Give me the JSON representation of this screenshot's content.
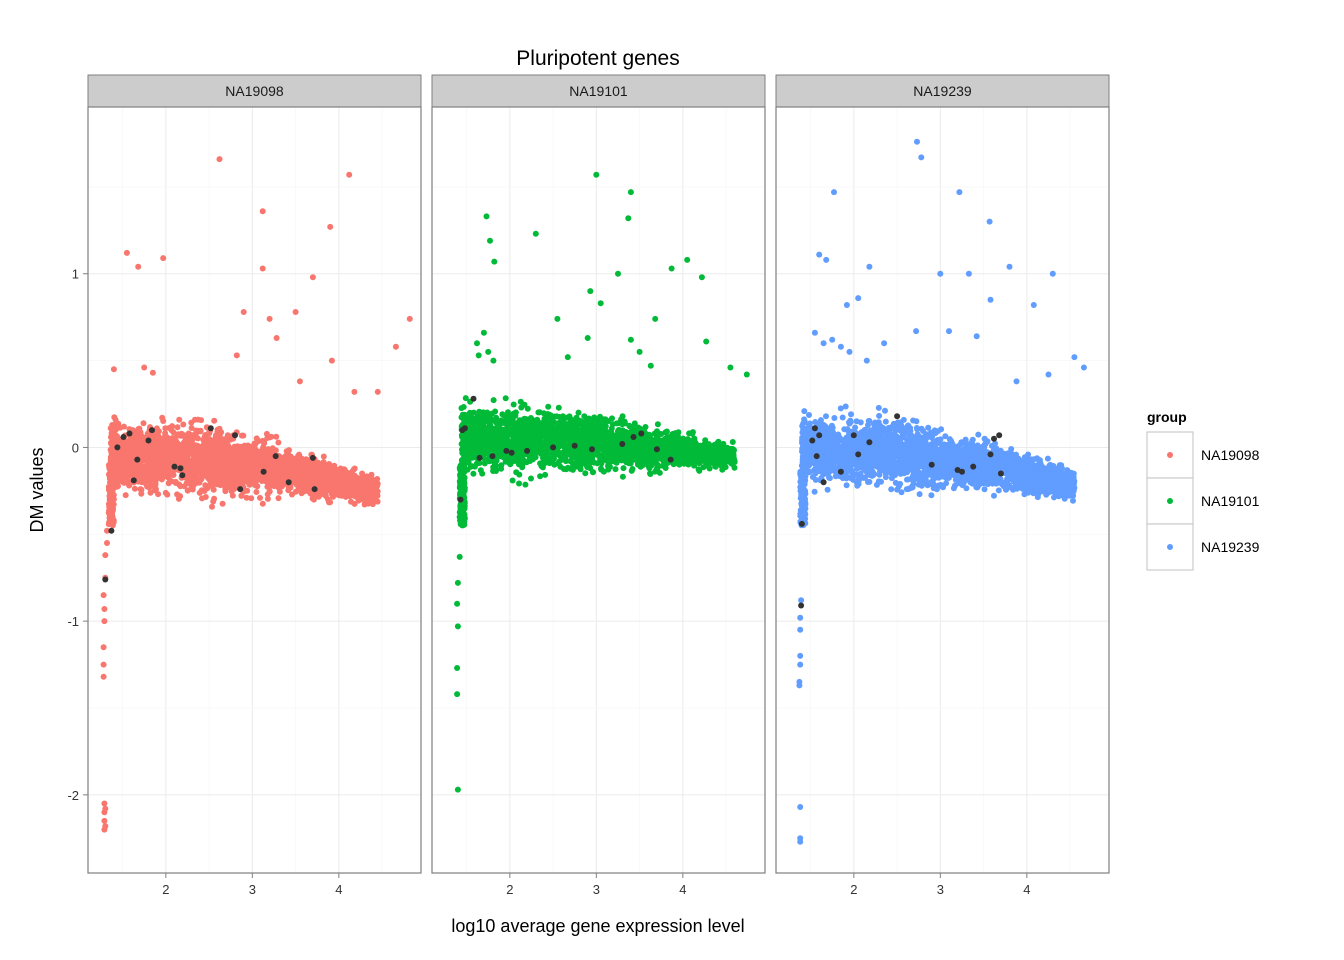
{
  "chart_data": {
    "type": "scatter",
    "title": "Pluripotent genes",
    "xlabel": "log10 average gene expression level",
    "ylabel": "DM values",
    "xlim": [
      1.1,
      4.95
    ],
    "ylim": [
      -2.45,
      1.96
    ],
    "x_ticks": [
      2,
      3,
      4
    ],
    "y_ticks": [
      1,
      0,
      -1,
      -2
    ],
    "y_tick_labels": [
      "1",
      "0",
      "-1",
      "-2"
    ],
    "grid": true,
    "legend": {
      "title": "group",
      "placement": "right",
      "entries": [
        "NA19098",
        "NA19101",
        "NA19239"
      ]
    },
    "highlight_color": "#333333",
    "panels": [
      {
        "name": "NA19098",
        "color": "#F8766D",
        "outliers": [
          [
            1.29,
            -2.05
          ],
          [
            1.29,
            -2.1
          ],
          [
            1.29,
            -2.15
          ],
          [
            1.29,
            -2.2
          ],
          [
            1.3,
            -2.18
          ],
          [
            1.3,
            -2.08
          ],
          [
            1.28,
            -1.32
          ],
          [
            1.28,
            -1.25
          ],
          [
            1.28,
            -1.15
          ],
          [
            1.29,
            -1.0
          ],
          [
            1.29,
            -0.93
          ],
          [
            1.28,
            -0.85
          ],
          [
            1.3,
            -0.75
          ],
          [
            1.3,
            -0.62
          ],
          [
            1.32,
            -0.55
          ],
          [
            1.32,
            -0.48
          ],
          [
            1.55,
            1.12
          ],
          [
            1.68,
            1.04
          ],
          [
            1.97,
            1.09
          ],
          [
            2.62,
            1.66
          ],
          [
            3.12,
            1.36
          ],
          [
            3.12,
            1.03
          ],
          [
            3.9,
            1.27
          ],
          [
            4.12,
            1.57
          ],
          [
            3.7,
            0.98
          ],
          [
            2.9,
            0.78
          ],
          [
            3.5,
            0.78
          ],
          [
            3.2,
            0.74
          ],
          [
            3.28,
            0.63
          ],
          [
            4.82,
            0.74
          ],
          [
            4.66,
            0.58
          ],
          [
            2.82,
            0.53
          ],
          [
            3.92,
            0.5
          ],
          [
            3.55,
            0.38
          ],
          [
            4.18,
            0.32
          ],
          [
            4.45,
            0.32
          ],
          [
            1.4,
            0.45
          ],
          [
            1.75,
            0.46
          ],
          [
            1.85,
            0.43
          ]
        ],
        "band": {
          "xmin": 1.36,
          "xmax": 4.45,
          "center": [
            [
              1.36,
              -0.05
            ],
            [
              2.4,
              -0.07
            ],
            [
              3.2,
              -0.12
            ],
            [
              4.45,
              -0.25
            ]
          ],
          "spread": [
            [
              1.36,
              0.2
            ],
            [
              2.5,
              0.22
            ],
            [
              3.5,
              0.13
            ],
            [
              4.45,
              0.09
            ]
          ]
        },
        "highlights": [
          [
            1.3,
            -0.76
          ],
          [
            1.37,
            -0.48
          ],
          [
            1.44,
            0.0
          ],
          [
            1.51,
            0.06
          ],
          [
            1.58,
            0.08
          ],
          [
            1.63,
            -0.19
          ],
          [
            1.67,
            -0.07
          ],
          [
            1.8,
            0.04
          ],
          [
            1.84,
            0.1
          ],
          [
            2.1,
            -0.11
          ],
          [
            2.17,
            -0.12
          ],
          [
            2.19,
            -0.16
          ],
          [
            2.52,
            0.11
          ],
          [
            2.8,
            0.07
          ],
          [
            2.86,
            -0.24
          ],
          [
            3.13,
            -0.14
          ],
          [
            3.27,
            -0.05
          ],
          [
            3.42,
            -0.2
          ],
          [
            3.7,
            -0.06
          ],
          [
            3.72,
            -0.24
          ]
        ]
      },
      {
        "name": "NA19101",
        "color": "#00BA38",
        "outliers": [
          [
            1.4,
            -1.97
          ],
          [
            1.39,
            -1.42
          ],
          [
            1.39,
            -1.27
          ],
          [
            1.4,
            -1.03
          ],
          [
            1.39,
            -0.9
          ],
          [
            1.4,
            -0.78
          ],
          [
            1.42,
            -0.63
          ],
          [
            1.42,
            -0.4
          ],
          [
            1.43,
            -0.35
          ],
          [
            1.73,
            1.33
          ],
          [
            1.77,
            1.19
          ],
          [
            1.82,
            1.07
          ],
          [
            2.3,
            1.23
          ],
          [
            3.0,
            1.57
          ],
          [
            3.4,
            1.47
          ],
          [
            3.37,
            1.32
          ],
          [
            3.25,
            1.0
          ],
          [
            2.93,
            0.9
          ],
          [
            3.05,
            0.83
          ],
          [
            2.55,
            0.74
          ],
          [
            3.87,
            1.03
          ],
          [
            4.05,
            1.08
          ],
          [
            4.22,
            0.98
          ],
          [
            3.68,
            0.74
          ],
          [
            4.27,
            0.61
          ],
          [
            2.67,
            0.52
          ],
          [
            2.9,
            0.63
          ],
          [
            3.4,
            0.62
          ],
          [
            3.5,
            0.55
          ],
          [
            3.63,
            0.47
          ],
          [
            4.55,
            0.46
          ],
          [
            4.74,
            0.42
          ],
          [
            1.62,
            0.6
          ],
          [
            1.64,
            0.53
          ],
          [
            1.75,
            0.55
          ],
          [
            1.81,
            0.5
          ],
          [
            1.7,
            0.66
          ]
        ],
        "band": {
          "xmin": 1.44,
          "xmax": 4.6,
          "center": [
            [
              1.44,
              0.05
            ],
            [
              2.5,
              0.04
            ],
            [
              3.5,
              0.0
            ],
            [
              4.6,
              -0.05
            ]
          ],
          "spread": [
            [
              1.44,
              0.2
            ],
            [
              2.5,
              0.2
            ],
            [
              3.7,
              0.13
            ],
            [
              4.6,
              0.06
            ]
          ]
        },
        "highlights": [
          [
            1.43,
            -0.3
          ],
          [
            1.45,
            0.1
          ],
          [
            1.48,
            0.11
          ],
          [
            1.58,
            0.28
          ],
          [
            1.65,
            -0.06
          ],
          [
            1.8,
            -0.05
          ],
          [
            1.96,
            -0.02
          ],
          [
            2.02,
            -0.03
          ],
          [
            2.2,
            -0.02
          ],
          [
            2.5,
            0.0
          ],
          [
            2.75,
            0.01
          ],
          [
            2.95,
            -0.01
          ],
          [
            3.3,
            0.02
          ],
          [
            3.43,
            0.06
          ],
          [
            3.52,
            0.08
          ],
          [
            3.7,
            -0.01
          ],
          [
            3.86,
            -0.07
          ]
        ]
      },
      {
        "name": "NA19239",
        "color": "#619CFF",
        "outliers": [
          [
            1.38,
            -2.27
          ],
          [
            1.38,
            -2.25
          ],
          [
            1.38,
            -2.07
          ],
          [
            1.37,
            -1.37
          ],
          [
            1.37,
            -1.35
          ],
          [
            1.38,
            -1.25
          ],
          [
            1.38,
            -1.2
          ],
          [
            1.38,
            -1.05
          ],
          [
            1.38,
            -0.98
          ],
          [
            1.39,
            -0.88
          ],
          [
            2.73,
            1.76
          ],
          [
            2.78,
            1.67
          ],
          [
            3.22,
            1.47
          ],
          [
            1.77,
            1.47
          ],
          [
            3.57,
            1.3
          ],
          [
            1.6,
            1.11
          ],
          [
            1.68,
            1.08
          ],
          [
            2.18,
            1.04
          ],
          [
            3.0,
            1.0
          ],
          [
            3.33,
            1.0
          ],
          [
            3.8,
            1.04
          ],
          [
            4.3,
            1.0
          ],
          [
            1.92,
            0.82
          ],
          [
            2.05,
            0.86
          ],
          [
            3.58,
            0.85
          ],
          [
            4.08,
            0.82
          ],
          [
            2.72,
            0.67
          ],
          [
            3.1,
            0.67
          ],
          [
            3.42,
            0.64
          ],
          [
            2.35,
            0.6
          ],
          [
            4.55,
            0.52
          ],
          [
            4.66,
            0.46
          ],
          [
            4.25,
            0.42
          ],
          [
            3.88,
            0.38
          ],
          [
            1.55,
            0.66
          ],
          [
            1.65,
            0.6
          ],
          [
            1.75,
            0.62
          ],
          [
            1.85,
            0.58
          ],
          [
            1.95,
            0.55
          ],
          [
            2.15,
            0.5
          ]
        ],
        "band": {
          "xmin": 1.4,
          "xmax": 4.55,
          "center": [
            [
              1.4,
              0.0
            ],
            [
              2.5,
              -0.03
            ],
            [
              3.5,
              -0.1
            ],
            [
              4.55,
              -0.22
            ]
          ],
          "spread": [
            [
              1.4,
              0.2
            ],
            [
              2.5,
              0.22
            ],
            [
              3.5,
              0.15
            ],
            [
              4.55,
              0.09
            ]
          ]
        },
        "highlights": [
          [
            1.39,
            -0.91
          ],
          [
            1.4,
            -0.44
          ],
          [
            1.52,
            0.04
          ],
          [
            1.55,
            0.11
          ],
          [
            1.57,
            -0.05
          ],
          [
            1.6,
            0.07
          ],
          [
            1.65,
            -0.2
          ],
          [
            1.85,
            -0.14
          ],
          [
            2.0,
            0.07
          ],
          [
            2.05,
            -0.04
          ],
          [
            2.18,
            0.03
          ],
          [
            2.5,
            0.18
          ],
          [
            2.9,
            -0.1
          ],
          [
            3.2,
            -0.13
          ],
          [
            3.25,
            -0.14
          ],
          [
            3.38,
            -0.11
          ],
          [
            3.58,
            -0.04
          ],
          [
            3.62,
            0.05
          ],
          [
            3.68,
            0.07
          ],
          [
            3.7,
            -0.15
          ]
        ]
      }
    ]
  }
}
